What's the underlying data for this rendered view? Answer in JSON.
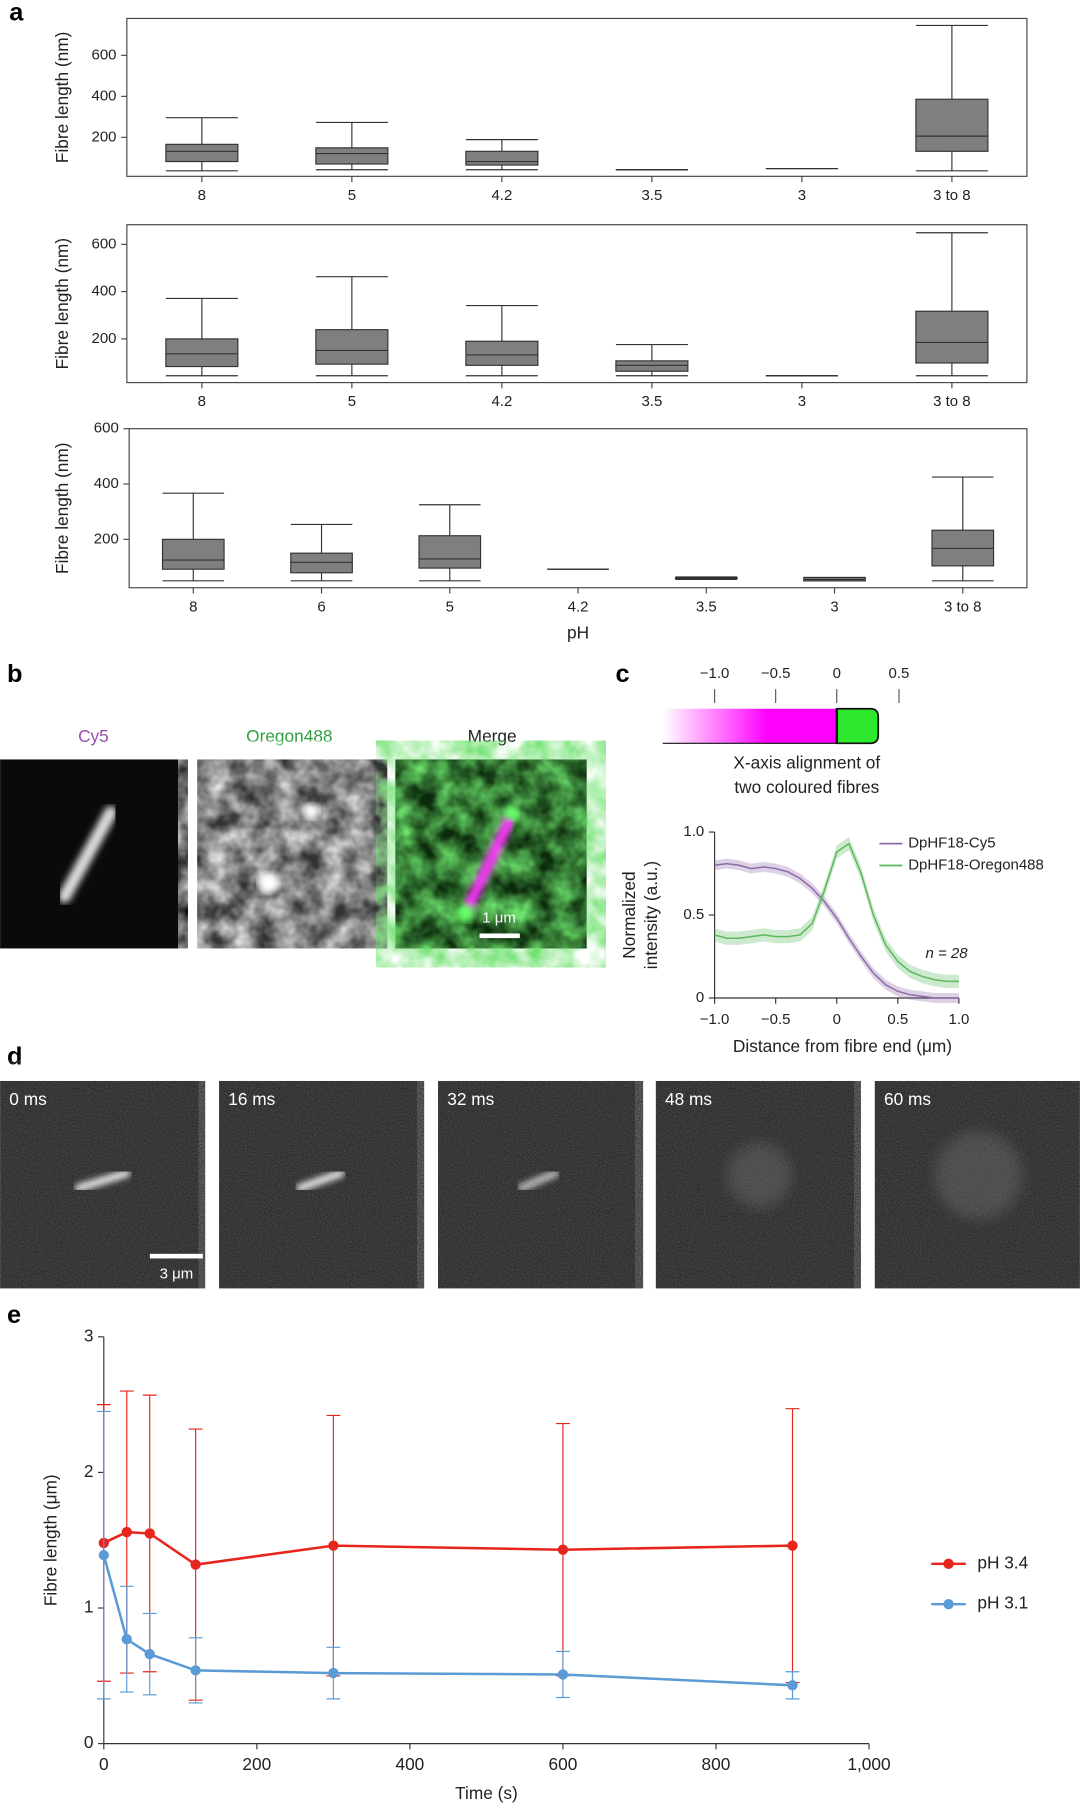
{
  "panel_labels": [
    "a",
    "b",
    "c",
    "d",
    "e"
  ],
  "images_b": {
    "titles": [
      "Cy5",
      "Oregon488",
      "Merge"
    ],
    "scale_bar": "1 μm"
  },
  "images_d": {
    "times": [
      "0 ms",
      "16 ms",
      "32 ms",
      "48 ms",
      "60 ms"
    ],
    "scale_bar": "3 μm"
  },
  "schematic": {
    "ticks": [
      "−1.0",
      "−0.5",
      "0",
      "0.5"
    ],
    "caption": [
      "X-axis alignment of",
      "two coloured fibres"
    ]
  },
  "chart_data": [
    {
      "type": "box",
      "ylabel": "Fibre length (nm)",
      "color": "#7f7f7f",
      "categories": [
        "8",
        "5",
        "4.2",
        "3.5",
        "3",
        "3 to 8"
      ],
      "boxes": [
        {
          "whislo": 37,
          "q1": 82,
          "med": 132,
          "q3": 166,
          "whishi": 296
        },
        {
          "whislo": 42,
          "q1": 70,
          "med": 121,
          "q3": 149,
          "whishi": 273
        },
        {
          "whislo": 42,
          "q1": 65,
          "med": 82,
          "q3": 132,
          "whishi": 189
        },
        {
          "whislo": 42,
          "q1": 42,
          "med": 42,
          "q3": 42,
          "whishi": 42
        },
        {
          "whislo": 48,
          "q1": 48,
          "med": 48,
          "q3": 48,
          "whishi": 48
        },
        {
          "whislo": 37,
          "q1": 132,
          "med": 206,
          "q3": 386,
          "whishi": 746
        }
      ],
      "ylim": [
        10,
        780
      ],
      "yticks": [
        200,
        400,
        600
      ]
    },
    {
      "type": "box",
      "ylabel": "Fibre length (nm)",
      "color": "#7f7f7f",
      "categories": [
        "8",
        "5",
        "4.2",
        "3.5",
        "3",
        "3 to 8"
      ],
      "boxes": [
        {
          "whislo": 44,
          "q1": 83,
          "med": 137,
          "q3": 200,
          "whishi": 371
        },
        {
          "whislo": 44,
          "q1": 93,
          "med": 151,
          "q3": 239,
          "whishi": 463
        },
        {
          "whislo": 44,
          "q1": 88,
          "med": 132,
          "q3": 190,
          "whishi": 341
        },
        {
          "whislo": 44,
          "q1": 63,
          "med": 88,
          "q3": 107,
          "whishi": 176
        },
        {
          "whislo": 44,
          "q1": 44,
          "med": 44,
          "q3": 44,
          "whishi": 44
        },
        {
          "whislo": 44,
          "q1": 98,
          "med": 185,
          "q3": 317,
          "whishi": 649
        }
      ],
      "ylim": [
        15,
        683
      ],
      "yticks": [
        200,
        400,
        600
      ]
    },
    {
      "type": "box",
      "ylabel": "Fibre length (nm)",
      "xlabel": "pH",
      "color": "#7f7f7f",
      "categories": [
        "8",
        "6",
        "5",
        "4.2",
        "3.5",
        "3",
        "3 to 8"
      ],
      "boxes": [
        {
          "whislo": 50,
          "q1": 92,
          "med": 125,
          "q3": 200,
          "whishi": 367
        },
        {
          "whislo": 50,
          "q1": 79,
          "med": 117,
          "q3": 150,
          "whishi": 254
        },
        {
          "whislo": 50,
          "q1": 96,
          "med": 129,
          "q3": 213,
          "whishi": 325
        },
        {
          "whislo": 92,
          "q1": 92,
          "med": 92,
          "q3": 92,
          "whishi": 92
        },
        {
          "whislo": 55,
          "q1": 58,
          "med": 60,
          "q3": 62,
          "whishi": 64
        },
        {
          "whislo": 50,
          "q1": 50,
          "med": 55,
          "q3": 62,
          "whishi": 62
        },
        {
          "whislo": 50,
          "q1": 104,
          "med": 167,
          "q3": 233,
          "whishi": 425
        }
      ],
      "ylim": [
        25,
        600
      ],
      "yticks": [
        200,
        400,
        600
      ]
    },
    {
      "type": "line",
      "xlabel": "Distance from fibre end (μm)",
      "ylabel": [
        "Normalized",
        "intensity (a.u.)"
      ],
      "annotation": "n = 28",
      "x": [
        -1,
        -0.9,
        -0.8,
        -0.7,
        -0.6,
        -0.5,
        -0.4,
        -0.3,
        -0.2,
        -0.1,
        0,
        0.1,
        0.2,
        0.3,
        0.4,
        0.5,
        0.6,
        0.7,
        0.8,
        0.9,
        1
      ],
      "series": [
        {
          "name": "DpHF18-Cy5",
          "color": "#8e6aa8",
          "error": 0.03,
          "values": [
            0.8,
            0.81,
            0.8,
            0.78,
            0.79,
            0.78,
            0.76,
            0.72,
            0.66,
            0.58,
            0.48,
            0.36,
            0.25,
            0.15,
            0.08,
            0.04,
            0.02,
            0.01,
            0,
            0,
            0
          ]
        },
        {
          "name": "DpHF18-Oregon488",
          "color": "#5cb85c",
          "error": 0.04,
          "values": [
            0.38,
            0.36,
            0.36,
            0.37,
            0.38,
            0.37,
            0.37,
            0.38,
            0.45,
            0.65,
            0.88,
            0.93,
            0.75,
            0.5,
            0.32,
            0.22,
            0.16,
            0.13,
            0.11,
            0.1,
            0.1
          ]
        }
      ],
      "xlim": [
        -1,
        1
      ],
      "xticks": [
        {
          "value": -1,
          "label": "−1.0"
        },
        {
          "value": -0.5,
          "label": "−0.5"
        },
        0,
        0.5,
        {
          "value": 1,
          "label": "1.0"
        }
      ],
      "ylim": [
        0,
        1
      ],
      "yticks": [
        0,
        0.5,
        {
          "value": 1,
          "label": "1.0"
        }
      ]
    },
    {
      "type": "line",
      "xlabel": "Time (s)",
      "ylabel": "Fibre length (μm)",
      "x": [
        0,
        30,
        60,
        120,
        300,
        600,
        900
      ],
      "series": [
        {
          "name": "pH 3.4",
          "color": "#e8251c",
          "values": [
            1.48,
            1.56,
            1.55,
            1.32,
            1.46,
            1.43,
            1.46
          ],
          "errors": [
            1.02,
            1.04,
            1.02,
            1.0,
            0.96,
            0.93,
            1.01
          ]
        },
        {
          "name": "pH 3.1",
          "color": "#5b9bd5",
          "values": [
            1.39,
            0.77,
            0.66,
            0.54,
            0.52,
            0.51,
            0.43
          ],
          "errors": [
            1.06,
            0.39,
            0.3,
            0.24,
            0.19,
            0.17,
            0.1
          ]
        }
      ],
      "xlim": [
        0,
        1000
      ],
      "xticks": [
        0,
        200,
        400,
        600,
        800,
        {
          "value": 1000,
          "label": "1,000"
        }
      ],
      "ylim": [
        0,
        3
      ],
      "yticks": [
        0,
        1,
        2,
        3
      ]
    }
  ]
}
